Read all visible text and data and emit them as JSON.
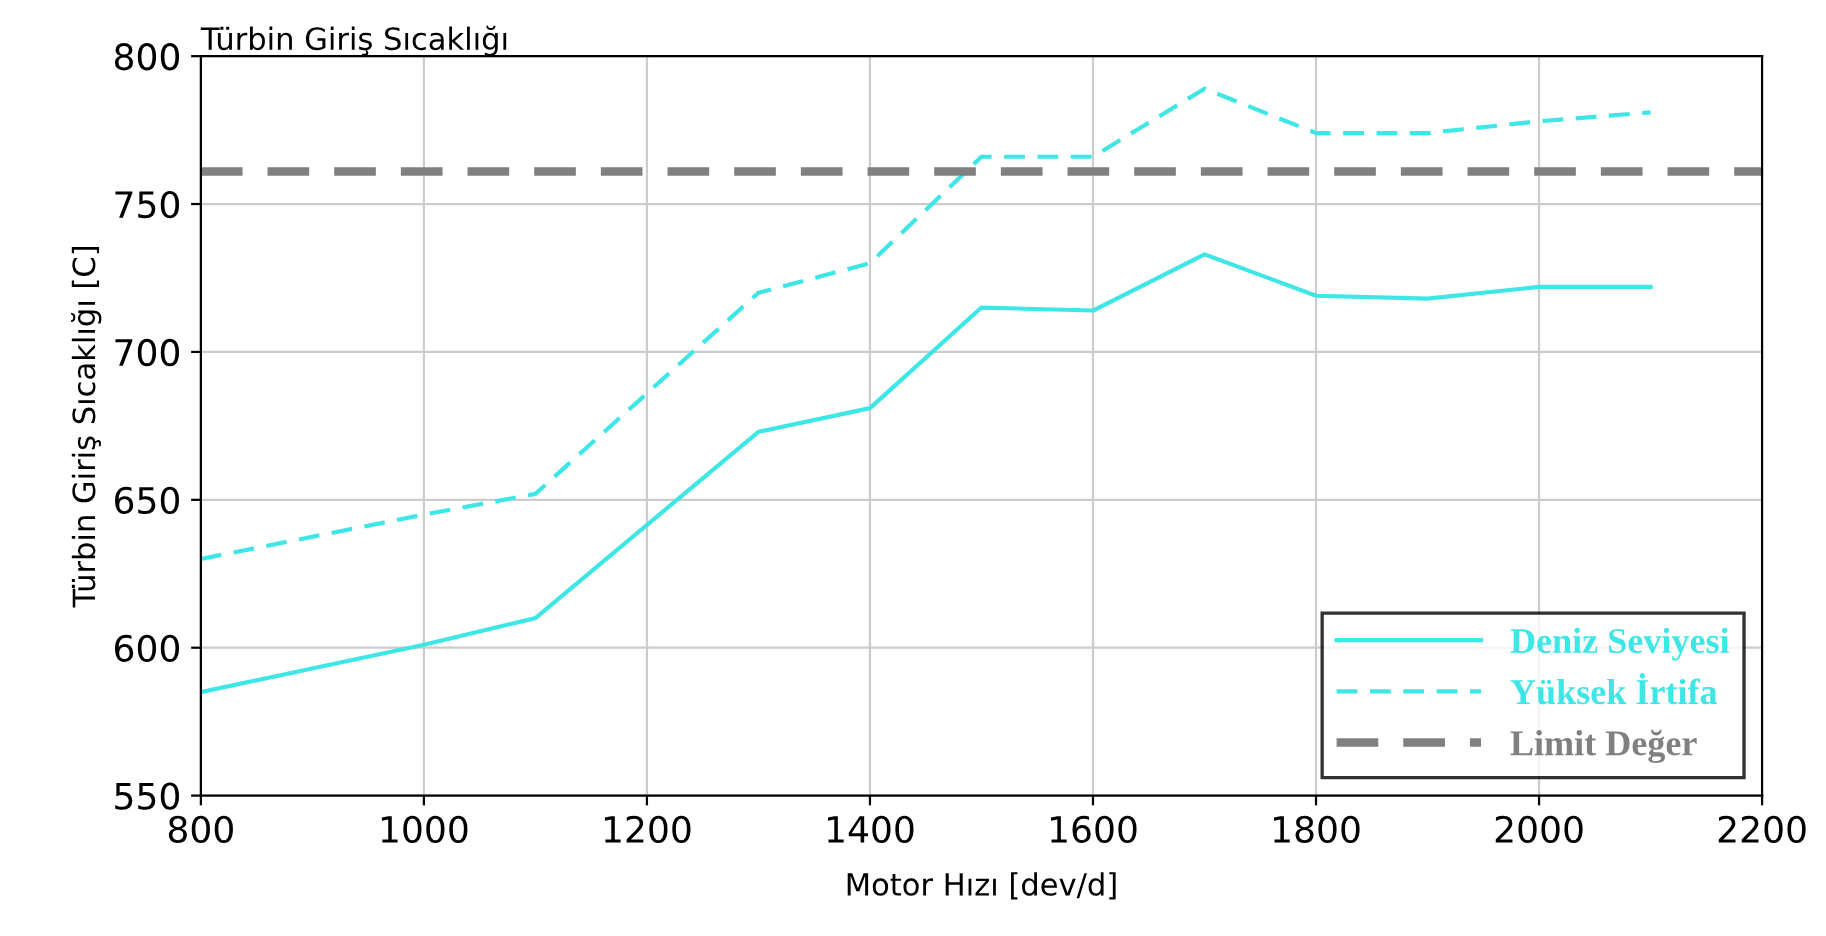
{
  "chart_data": {
    "type": "line",
    "title": "Türbin Giriş Sıcaklığı",
    "xlabel": "Motor Hızı [dev/d]",
    "ylabel": "Türbin Giriş Sıcaklığı [C]",
    "x": [
      800,
      1000,
      1100,
      1300,
      1400,
      1500,
      1600,
      1700,
      1800,
      1900,
      2000,
      2100
    ],
    "series": [
      {
        "name": "Deniz Seviyesi",
        "color": "#3ee6e6",
        "line_style": "solid",
        "values": [
          585,
          601,
          610,
          673,
          681,
          715,
          714,
          733,
          719,
          718,
          722,
          722
        ]
      },
      {
        "name": "Yüksek İrtifa",
        "color": "#3ee6e6",
        "line_style": "dashed",
        "values": [
          630,
          645,
          652,
          720,
          730,
          766,
          766,
          789,
          774,
          774,
          778,
          781
        ]
      }
    ],
    "ref_lines": [
      {
        "axis": "y",
        "value": 761,
        "label": "Limit Değer",
        "color": "#808080",
        "line_style": "dashed"
      }
    ],
    "xlim": [
      800,
      2200
    ],
    "xticks": [
      800,
      1000,
      1200,
      1400,
      1600,
      1800,
      2000,
      2200
    ],
    "ylim": [
      550,
      800
    ],
    "yticks": [
      550,
      600,
      650,
      700,
      750,
      800
    ],
    "grid": true,
    "legend": "bottom right"
  }
}
